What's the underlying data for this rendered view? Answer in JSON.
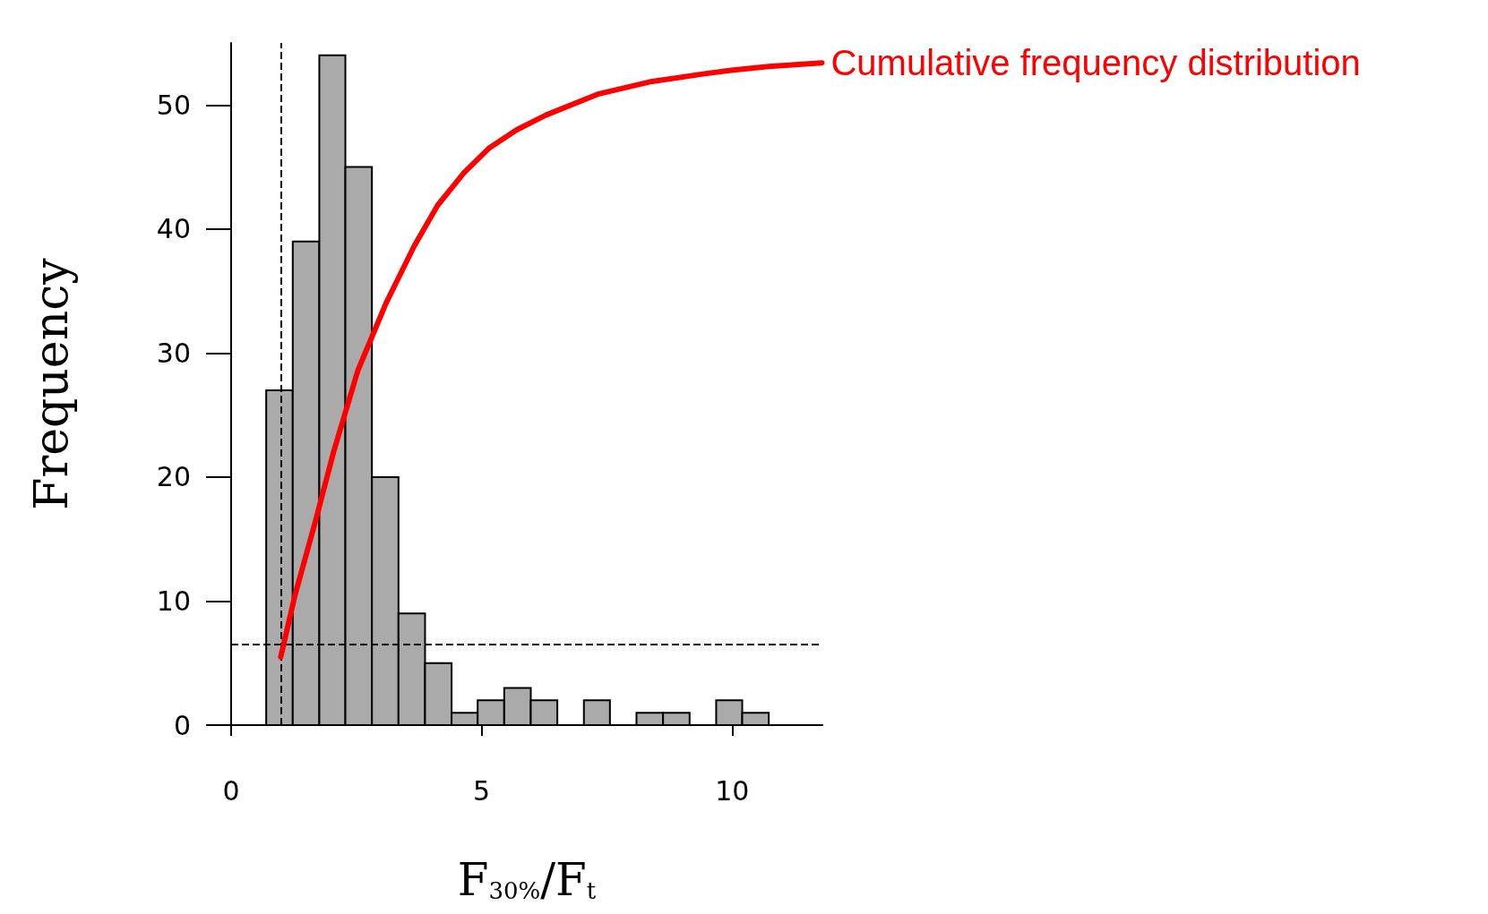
{
  "chart_data": {
    "type": "histogram",
    "xlabel": "F$_{30%}$/F$_{t}$",
    "ylabel": "Frequency",
    "bins": [
      0.7,
      1.23,
      1.76,
      2.28,
      2.81,
      3.34,
      3.87,
      4.4,
      4.92,
      5.45,
      5.98,
      6.51,
      7.04,
      7.56,
      8.09,
      8.62,
      9.15,
      9.68,
      10.2,
      10.73
    ],
    "values": [
      27,
      39,
      54,
      45,
      20,
      9,
      5,
      1,
      2,
      3,
      2,
      0,
      2,
      0,
      1,
      1,
      0,
      2,
      1
    ],
    "color": "#aaaaaa",
    "series": [
      {
        "type": "line",
        "name": "Cumulative frequency distribution",
        "color": "#ff0000",
        "x": [
          0.99,
          1.27,
          1.68,
          2.05,
          2.53,
          3.09,
          3.65,
          4.12,
          4.64,
          5.14,
          5.7,
          6.29,
          7.34,
          8.4,
          9.42,
          9.98,
          10.73,
          11.79
        ],
        "values": [
          5.5,
          10.4,
          16.4,
          22.1,
          28.6,
          34.0,
          38.6,
          41.9,
          44.5,
          46.5,
          48.0,
          49.2,
          50.9,
          51.9,
          52.5,
          52.8,
          53.1,
          53.4
        ]
      }
    ],
    "ref_lines": [
      {
        "axis": "x",
        "value": 1,
        "label": null,
        "line_style": "dashed"
      },
      {
        "axis": "y",
        "value": 6.5,
        "label": null,
        "line_style": "dashed"
      }
    ],
    "xlim": [
      0,
      11.8
    ],
    "xticks": [
      0,
      5,
      10
    ],
    "ylim": [
      0,
      55
    ],
    "yticks": [
      0,
      10,
      20,
      30,
      40,
      50
    ],
    "grid": false,
    "legend": false,
    "marker": "none"
  }
}
